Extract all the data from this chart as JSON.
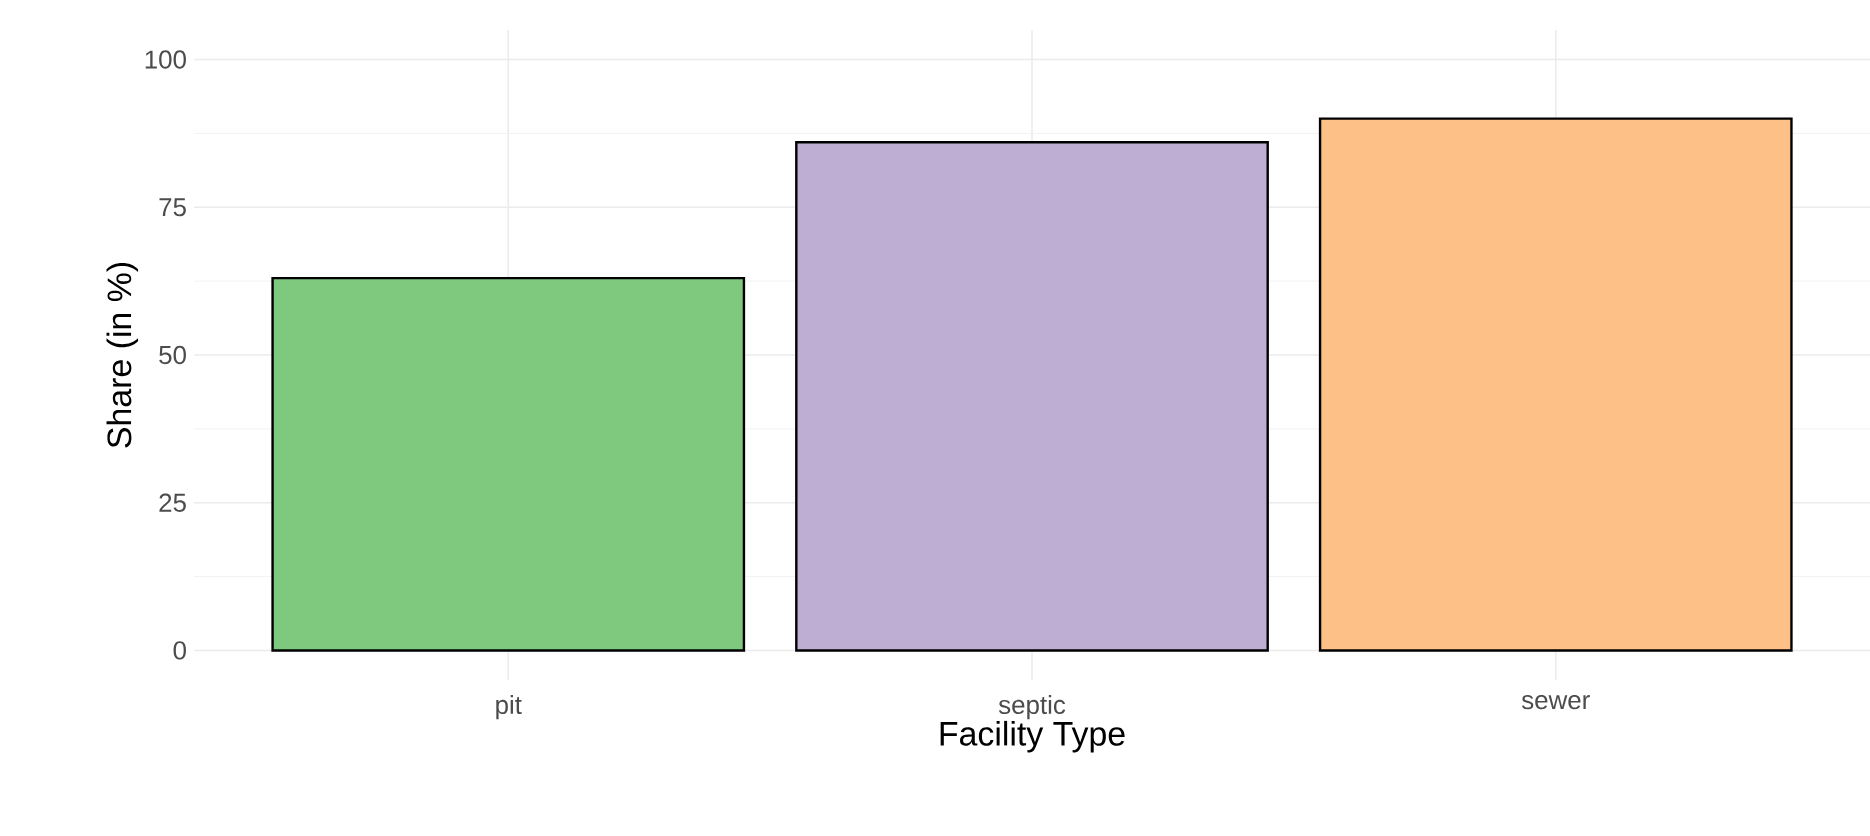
{
  "chart_data": {
    "type": "bar",
    "xlabel": "Facility Type",
    "ylabel": "Share (in %)",
    "categories": [
      "pit",
      "septic",
      "sewer"
    ],
    "values": [
      63,
      86,
      90
    ],
    "colors": [
      "#7fc97f",
      "#beaed4",
      "#fdc086"
    ],
    "ylim": [
      -5,
      105
    ],
    "yticks": [
      0,
      25,
      50,
      75,
      100
    ],
    "grid": true
  }
}
